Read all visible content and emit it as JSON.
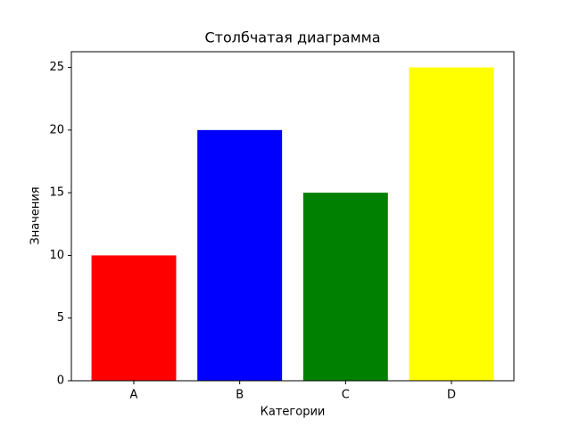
{
  "chart_data": {
    "type": "bar",
    "title": "Столбчатая диаграмма",
    "x_label": "Категории",
    "y_label": "Значения",
    "categories": [
      "A",
      "B",
      "C",
      "D"
    ],
    "values": [
      10,
      20,
      15,
      25
    ],
    "colors": [
      "#ff0000",
      "#0000ff",
      "#008000",
      "#ffff00"
    ],
    "ylim": [
      0,
      26.25
    ],
    "yticks": [
      0,
      5,
      10,
      15,
      20,
      25
    ]
  }
}
